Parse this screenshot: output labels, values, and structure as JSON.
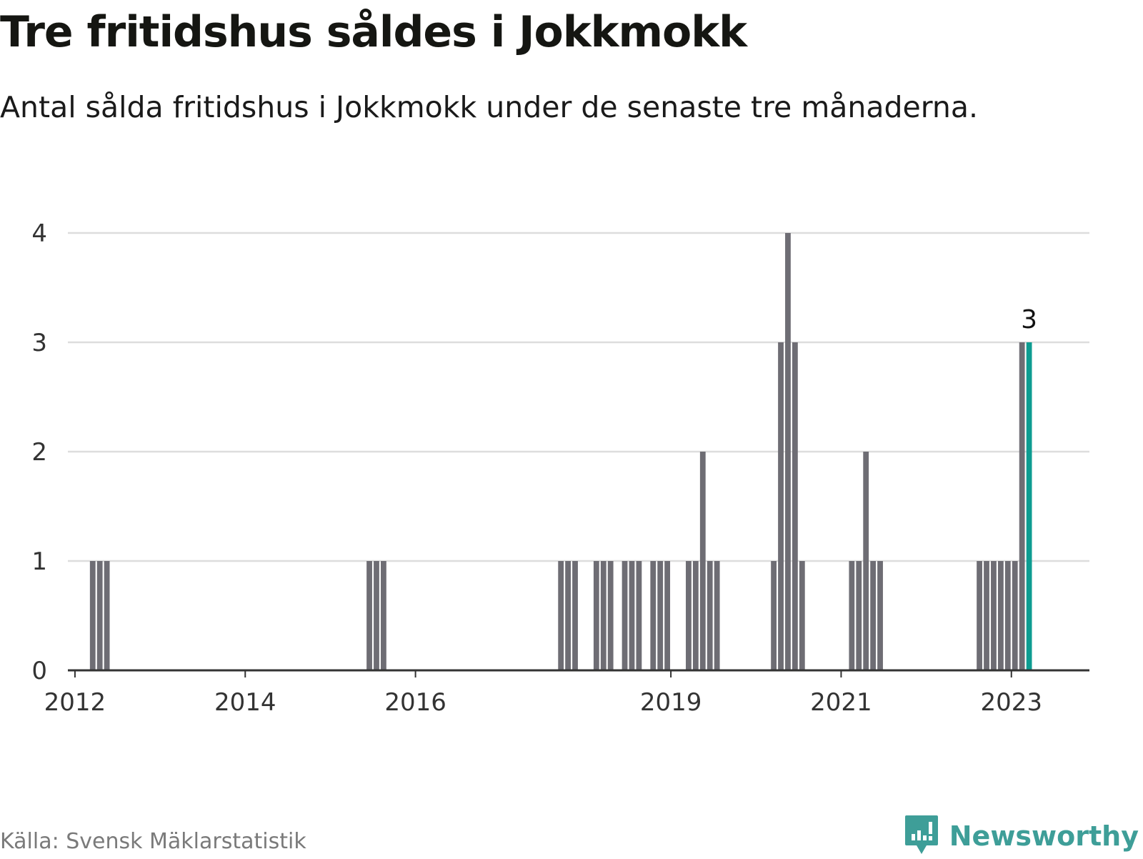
{
  "title": "Tre fritidshus såldes i Jokkmokk",
  "subtitle": "Antal sålda fritidshus i Jokkmokk under de senaste tre månaderna.",
  "source": "Källa: Svensk Mäklarstatistik",
  "brand": {
    "name": "Newsworthy",
    "icon": "newsworthy-logo-icon",
    "color": "#3e9e98"
  },
  "colors": {
    "bar": "#6e6d74",
    "highlight": "#0d9c91",
    "grid": "#dddddd",
    "axis": "#333333"
  },
  "chart_data": {
    "type": "bar",
    "xlabel": "",
    "ylabel": "",
    "ylim": [
      0,
      4
    ],
    "yticks": [
      "0",
      "1",
      "2",
      "3",
      "4"
    ],
    "grid": true,
    "xticks": [
      {
        "label": "2012",
        "date": "2012-01"
      },
      {
        "label": "2014",
        "date": "2014-01"
      },
      {
        "label": "2016",
        "date": "2016-01"
      },
      {
        "label": "2019",
        "date": "2019-01"
      },
      {
        "label": "2021",
        "date": "2021-01"
      },
      {
        "label": "2023",
        "date": "2023-01"
      }
    ],
    "categories": [
      "2012-03",
      "2012-04",
      "2012-05",
      "2015-06",
      "2015-07",
      "2015-08",
      "2017-09",
      "2017-10",
      "2017-11",
      "2018-02",
      "2018-03",
      "2018-04",
      "2018-06",
      "2018-07",
      "2018-08",
      "2018-10",
      "2018-11",
      "2018-12",
      "2019-03",
      "2019-04",
      "2019-05",
      "2019-06",
      "2019-07",
      "2020-03",
      "2020-04",
      "2020-05",
      "2020-06",
      "2020-07",
      "2021-02",
      "2021-03",
      "2021-04",
      "2021-05",
      "2021-06",
      "2022-08",
      "2022-09",
      "2022-10",
      "2022-11",
      "2022-12",
      "2023-01",
      "2023-02",
      "2023-03"
    ],
    "values": [
      1,
      1,
      1,
      1,
      1,
      1,
      1,
      1,
      1,
      1,
      1,
      1,
      1,
      1,
      1,
      1,
      1,
      1,
      1,
      1,
      2,
      1,
      1,
      1,
      3,
      4,
      3,
      1,
      1,
      1,
      2,
      1,
      1,
      1,
      1,
      1,
      1,
      1,
      1,
      3,
      3
    ],
    "highlight_index": 40,
    "highlight_label": "3"
  }
}
